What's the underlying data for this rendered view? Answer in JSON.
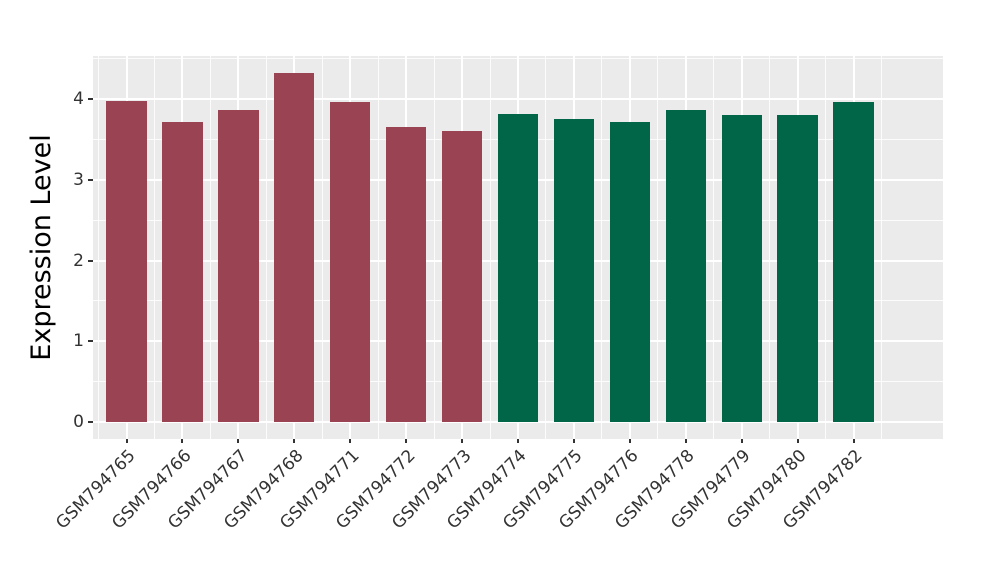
{
  "figure": {
    "background_color": "#FFFFFF",
    "panel_background_color": "#EBEBEB",
    "gridline_color": "#FFFFFF",
    "tick_color": "#333333",
    "tick_label_color": "#333333",
    "axis_title_color": "#000000"
  },
  "chart_data": {
    "type": "bar",
    "title": "",
    "xlabel": "",
    "ylabel": "Expression Level",
    "categories": [
      "GSM794765",
      "GSM794766",
      "GSM794767",
      "GSM794768",
      "GSM794771",
      "GSM794772",
      "GSM794773",
      "GSM794774",
      "GSM794775",
      "GSM794776",
      "GSM794778",
      "GSM794779",
      "GSM794780",
      "GSM794782"
    ],
    "values": [
      3.98,
      3.72,
      3.87,
      4.32,
      3.97,
      3.66,
      3.6,
      3.82,
      3.75,
      3.72,
      3.87,
      3.8,
      3.81,
      3.96
    ],
    "bar_colors": [
      "#9A4352",
      "#9A4352",
      "#9A4352",
      "#9A4352",
      "#9A4352",
      "#9A4352",
      "#9A4352",
      "#006647",
      "#006647",
      "#006647",
      "#006647",
      "#006647",
      "#006647",
      "#006647"
    ],
    "group_colors": {
      "left_group": "#9A4352",
      "right_group": "#006647"
    },
    "yticks": [
      0,
      1,
      2,
      3,
      4
    ],
    "ylim": [
      -0.21,
      4.53
    ],
    "x_tick_rotation_deg": -45,
    "grid": "major and minor, white on gray panel",
    "legend_position": "none"
  }
}
